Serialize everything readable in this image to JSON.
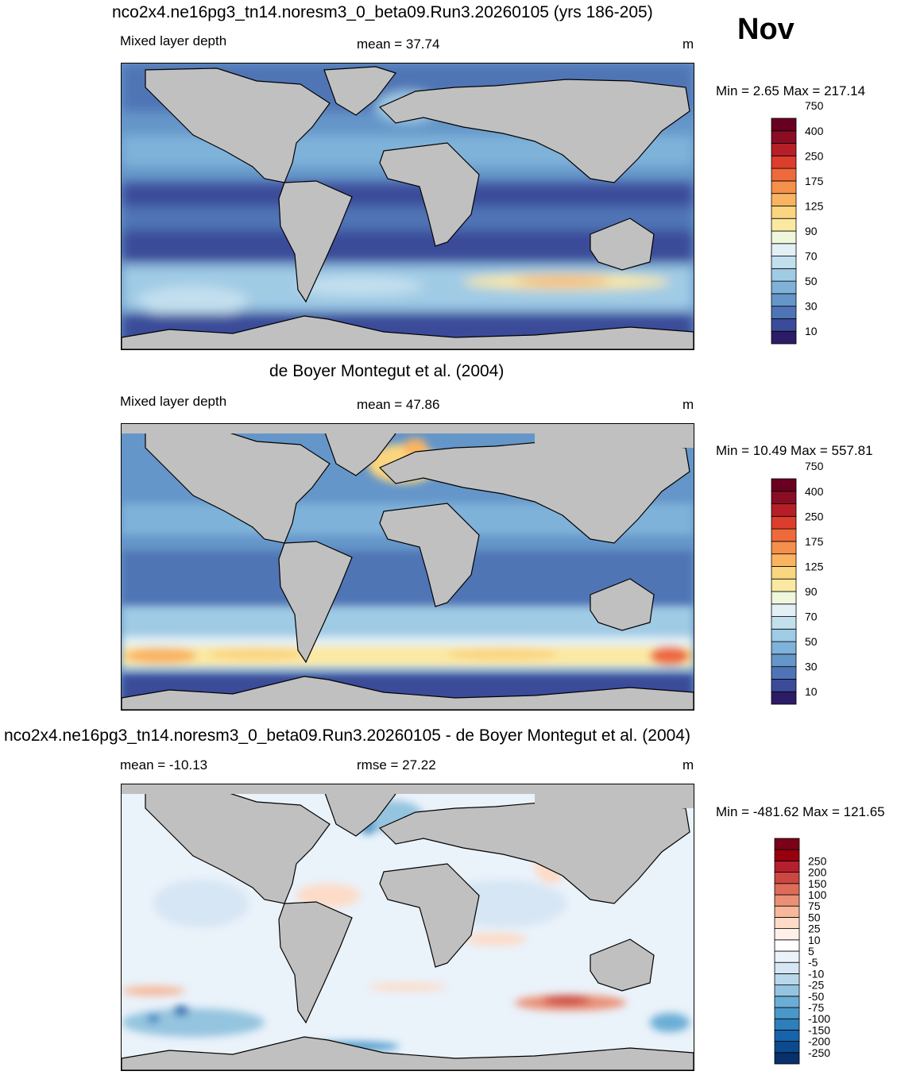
{
  "header": {
    "month": "Nov"
  },
  "panels": [
    {
      "id": "model",
      "title": "nco2x4.ne16pg3_tn14.noresm3_0_beta09.Run3.20260105 (yrs 186-205)",
      "left_label": "Mixed layer depth",
      "center_label": "mean =  37.74",
      "units": "m",
      "minmax": "Min =   2.65 Max = 217.14",
      "colorbar": {
        "colors": [
          "#2c1c66",
          "#3b4b99",
          "#4f74b5",
          "#6596c9",
          "#7fb2d9",
          "#a0cbe5",
          "#c2dfee",
          "#e2f0f5",
          "#eef6dc",
          "#fbe9a2",
          "#fbd57f",
          "#f9b462",
          "#f58f4c",
          "#ee6a3c",
          "#dc3d2d",
          "#b61f28",
          "#8a0d24",
          "#6a0021"
        ],
        "tick_labels": [
          "10",
          "30",
          "50",
          "70",
          "90",
          "125",
          "175",
          "250",
          "400",
          "750"
        ]
      }
    },
    {
      "id": "obs",
      "title": "de Boyer Montegut et al. (2004)",
      "left_label": "Mixed layer depth",
      "center_label": "mean =  47.86",
      "units": "m",
      "minmax": "Min =  10.49 Max = 557.81",
      "colorbar": {
        "colors": [
          "#2c1c66",
          "#3b4b99",
          "#4f74b5",
          "#6596c9",
          "#7fb2d9",
          "#a0cbe5",
          "#c2dfee",
          "#e2f0f5",
          "#eef6dc",
          "#fbe9a2",
          "#fbd57f",
          "#f9b462",
          "#f58f4c",
          "#ee6a3c",
          "#dc3d2d",
          "#b61f28",
          "#8a0d24",
          "#6a0021"
        ],
        "tick_labels": [
          "10",
          "30",
          "50",
          "70",
          "90",
          "125",
          "175",
          "250",
          "400",
          "750"
        ]
      }
    },
    {
      "id": "diff",
      "title": "nco2x4.ne16pg3_tn14.noresm3_0_beta09.Run3.20260105 - de Boyer Montegut et al. (2004)",
      "left_label": "mean = -10.13",
      "center_label": "rmse =  27.22",
      "units": "m",
      "minmax": "Min = -481.62 Max = 121.65",
      "colorbar": {
        "colors": [
          "#08306b",
          "#0b4a8f",
          "#1764ab",
          "#2e7ebc",
          "#4a98c9",
          "#6aaed6",
          "#94c4df",
          "#b9d7ea",
          "#d6e6f4",
          "#eaf2fa",
          "#ffffff",
          "#fff1ea",
          "#fddbc7",
          "#f7b799",
          "#ea9076",
          "#de6c59",
          "#cc4741",
          "#b51f2e",
          "#99000d",
          "#7a0018"
        ],
        "tick_labels": [
          "-250",
          "-200",
          "-150",
          "-100",
          "-75",
          "-50",
          "-25",
          "-10",
          "-5",
          "5",
          "10",
          "25",
          "50",
          "75",
          "100",
          "150",
          "200",
          "250"
        ]
      }
    }
  ]
}
